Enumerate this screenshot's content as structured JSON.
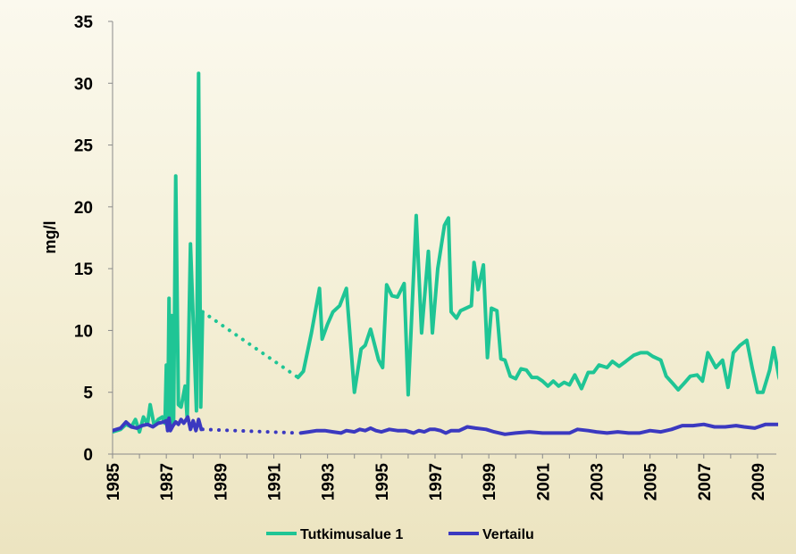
{
  "chart_data": {
    "type": "line",
    "title": "",
    "xlabel": "",
    "ylabel": "mg/l",
    "xlim": [
      1985,
      2009.7
    ],
    "ylim": [
      0,
      35
    ],
    "yticks": [
      0,
      5,
      10,
      15,
      20,
      25,
      30,
      35
    ],
    "xticks": [
      1985,
      1987,
      1989,
      1991,
      1993,
      1995,
      1997,
      1999,
      2001,
      2003,
      2005,
      2007,
      2009
    ],
    "grid": false,
    "legend": "bottom",
    "series": [
      {
        "name": "Tutkimusalue 1",
        "color": "#1fc595",
        "segments": [
          [
            [
              1985.0,
              1.8
            ],
            [
              1985.3,
              2.0
            ],
            [
              1985.5,
              2.4
            ],
            [
              1985.7,
              2.2
            ],
            [
              1985.85,
              2.8
            ],
            [
              1986.0,
              1.8
            ],
            [
              1986.15,
              3.0
            ],
            [
              1986.3,
              2.4
            ],
            [
              1986.4,
              4.0
            ],
            [
              1986.55,
              2.3
            ],
            [
              1986.7,
              2.8
            ],
            [
              1986.85,
              3.0
            ],
            [
              1986.95,
              2.5
            ],
            [
              1987.0,
              7.2
            ],
            [
              1987.05,
              2.0
            ],
            [
              1987.1,
              12.6
            ],
            [
              1987.15,
              2.2
            ],
            [
              1987.2,
              11.2
            ],
            [
              1987.27,
              2.4
            ],
            [
              1987.35,
              22.5
            ],
            [
              1987.45,
              4.0
            ],
            [
              1987.55,
              3.8
            ],
            [
              1987.7,
              5.5
            ],
            [
              1987.78,
              2.8
            ],
            [
              1987.9,
              17.0
            ],
            [
              1988.05,
              8.0
            ],
            [
              1988.12,
              3.5
            ],
            [
              1988.2,
              30.8
            ],
            [
              1988.28,
              3.8
            ],
            [
              1988.35,
              11.5
            ]
          ],
          [
            [
              1991.9,
              6.2
            ],
            [
              1992.1,
              6.7
            ],
            [
              1992.4,
              9.8
            ],
            [
              1992.7,
              13.4
            ],
            [
              1992.8,
              9.3
            ],
            [
              1993.0,
              10.5
            ],
            [
              1993.2,
              11.5
            ],
            [
              1993.45,
              12.0
            ],
            [
              1993.7,
              13.4
            ],
            [
              1994.0,
              5.0
            ],
            [
              1994.25,
              8.5
            ],
            [
              1994.4,
              8.8
            ],
            [
              1994.6,
              10.1
            ],
            [
              1994.9,
              7.6
            ],
            [
              1995.05,
              7.0
            ],
            [
              1995.2,
              13.7
            ],
            [
              1995.4,
              12.8
            ],
            [
              1995.6,
              12.7
            ],
            [
              1995.85,
              13.8
            ],
            [
              1996.0,
              4.8
            ],
            [
              1996.3,
              19.3
            ],
            [
              1996.5,
              9.8
            ],
            [
              1996.75,
              16.4
            ],
            [
              1996.9,
              9.8
            ],
            [
              1997.1,
              15.0
            ],
            [
              1997.35,
              18.5
            ],
            [
              1997.5,
              19.1
            ],
            [
              1997.6,
              11.5
            ],
            [
              1997.8,
              11.0
            ],
            [
              1997.95,
              11.6
            ],
            [
              1998.15,
              11.8
            ],
            [
              1998.35,
              12.0
            ],
            [
              1998.45,
              15.5
            ],
            [
              1998.6,
              13.3
            ],
            [
              1998.8,
              15.3
            ],
            [
              1998.95,
              7.8
            ],
            [
              1999.1,
              11.8
            ],
            [
              1999.3,
              11.6
            ],
            [
              1999.45,
              7.7
            ],
            [
              1999.6,
              7.6
            ],
            [
              1999.8,
              6.3
            ],
            [
              2000.0,
              6.1
            ],
            [
              2000.2,
              6.9
            ],
            [
              2000.4,
              6.8
            ],
            [
              2000.6,
              6.2
            ],
            [
              2000.8,
              6.2
            ],
            [
              2001.0,
              5.9
            ],
            [
              2001.2,
              5.5
            ],
            [
              2001.4,
              5.9
            ],
            [
              2001.6,
              5.5
            ],
            [
              2001.8,
              5.8
            ],
            [
              2002.0,
              5.6
            ],
            [
              2002.2,
              6.4
            ],
            [
              2002.45,
              5.3
            ],
            [
              2002.7,
              6.6
            ],
            [
              2002.9,
              6.6
            ],
            [
              2003.1,
              7.2
            ],
            [
              2003.4,
              7.0
            ],
            [
              2003.6,
              7.5
            ],
            [
              2003.85,
              7.1
            ],
            [
              2004.1,
              7.5
            ],
            [
              2004.4,
              8.0
            ],
            [
              2004.65,
              8.2
            ],
            [
              2004.9,
              8.2
            ],
            [
              2005.1,
              7.9
            ],
            [
              2005.4,
              7.6
            ],
            [
              2005.6,
              6.3
            ],
            [
              2005.85,
              5.7
            ],
            [
              2006.05,
              5.2
            ],
            [
              2006.3,
              5.8
            ],
            [
              2006.5,
              6.3
            ],
            [
              2006.75,
              6.4
            ],
            [
              2006.95,
              5.9
            ],
            [
              2007.15,
              8.2
            ],
            [
              2007.45,
              7.0
            ],
            [
              2007.7,
              7.6
            ],
            [
              2007.9,
              5.4
            ],
            [
              2008.1,
              8.2
            ],
            [
              2008.35,
              8.8
            ],
            [
              2008.6,
              9.2
            ],
            [
              2008.8,
              7.0
            ],
            [
              2009.0,
              5.0
            ],
            [
              2009.2,
              5.0
            ],
            [
              2009.45,
              6.8
            ],
            [
              2009.6,
              8.6
            ],
            [
              2009.8,
              6.2
            ],
            [
              2010.05,
              4.7
            ],
            [
              2010.35,
              4.8
            ]
          ]
        ],
        "dotted": [
          [
            1988.35,
            11.5
          ],
          [
            1991.9,
            6.2
          ]
        ]
      },
      {
        "name": "Vertailu",
        "color": "#3b39c0",
        "segments": [
          [
            [
              1985.0,
              1.9
            ],
            [
              1985.3,
              2.1
            ],
            [
              1985.5,
              2.6
            ],
            [
              1985.7,
              2.2
            ],
            [
              1985.9,
              2.1
            ],
            [
              1986.1,
              2.3
            ],
            [
              1986.3,
              2.4
            ],
            [
              1986.5,
              2.2
            ],
            [
              1986.7,
              2.5
            ],
            [
              1986.9,
              2.6
            ],
            [
              1987.0,
              2.7
            ],
            [
              1987.05,
              1.9
            ],
            [
              1987.1,
              2.9
            ],
            [
              1987.15,
              1.9
            ],
            [
              1987.25,
              2.3
            ],
            [
              1987.35,
              2.6
            ],
            [
              1987.45,
              2.4
            ],
            [
              1987.55,
              2.8
            ],
            [
              1987.65,
              2.5
            ],
            [
              1987.8,
              3.0
            ],
            [
              1987.9,
              2.0
            ],
            [
              1988.0,
              2.7
            ],
            [
              1988.1,
              1.9
            ],
            [
              1988.2,
              2.8
            ],
            [
              1988.3,
              2.0
            ]
          ],
          [
            [
              1992.0,
              1.7
            ],
            [
              1992.3,
              1.8
            ],
            [
              1992.6,
              1.9
            ],
            [
              1992.9,
              1.9
            ],
            [
              1993.2,
              1.8
            ],
            [
              1993.5,
              1.7
            ],
            [
              1993.7,
              1.9
            ],
            [
              1994.0,
              1.8
            ],
            [
              1994.2,
              2.0
            ],
            [
              1994.4,
              1.9
            ],
            [
              1994.6,
              2.1
            ],
            [
              1994.8,
              1.9
            ],
            [
              1995.0,
              1.8
            ],
            [
              1995.3,
              2.0
            ],
            [
              1995.6,
              1.9
            ],
            [
              1995.9,
              1.9
            ],
            [
              1996.2,
              1.7
            ],
            [
              1996.4,
              1.9
            ],
            [
              1996.6,
              1.8
            ],
            [
              1996.8,
              2.0
            ],
            [
              1997.0,
              2.0
            ],
            [
              1997.2,
              1.9
            ],
            [
              1997.4,
              1.7
            ],
            [
              1997.6,
              1.9
            ],
            [
              1997.9,
              1.9
            ],
            [
              1998.2,
              2.2
            ],
            [
              1998.5,
              2.1
            ],
            [
              1998.9,
              2.0
            ],
            [
              1999.2,
              1.8
            ],
            [
              1999.6,
              1.6
            ],
            [
              2000.0,
              1.7
            ],
            [
              2000.5,
              1.8
            ],
            [
              2001.0,
              1.7
            ],
            [
              2001.5,
              1.7
            ],
            [
              2002.0,
              1.7
            ],
            [
              2002.3,
              2.0
            ],
            [
              2002.7,
              1.9
            ],
            [
              2003.0,
              1.8
            ],
            [
              2003.4,
              1.7
            ],
            [
              2003.8,
              1.8
            ],
            [
              2004.2,
              1.7
            ],
            [
              2004.6,
              1.7
            ],
            [
              2005.0,
              1.9
            ],
            [
              2005.4,
              1.8
            ],
            [
              2005.8,
              2.0
            ],
            [
              2006.2,
              2.3
            ],
            [
              2006.6,
              2.3
            ],
            [
              2007.0,
              2.4
            ],
            [
              2007.4,
              2.2
            ],
            [
              2007.8,
              2.2
            ],
            [
              2008.2,
              2.3
            ],
            [
              2008.5,
              2.2
            ],
            [
              2008.9,
              2.1
            ],
            [
              2009.3,
              2.4
            ],
            [
              2009.6,
              2.4
            ],
            [
              2010.0,
              2.4
            ],
            [
              2010.35,
              2.5
            ]
          ]
        ],
        "dotted": [
          [
            1988.35,
            2.0
          ],
          [
            1991.9,
            1.7
          ]
        ]
      }
    ]
  }
}
